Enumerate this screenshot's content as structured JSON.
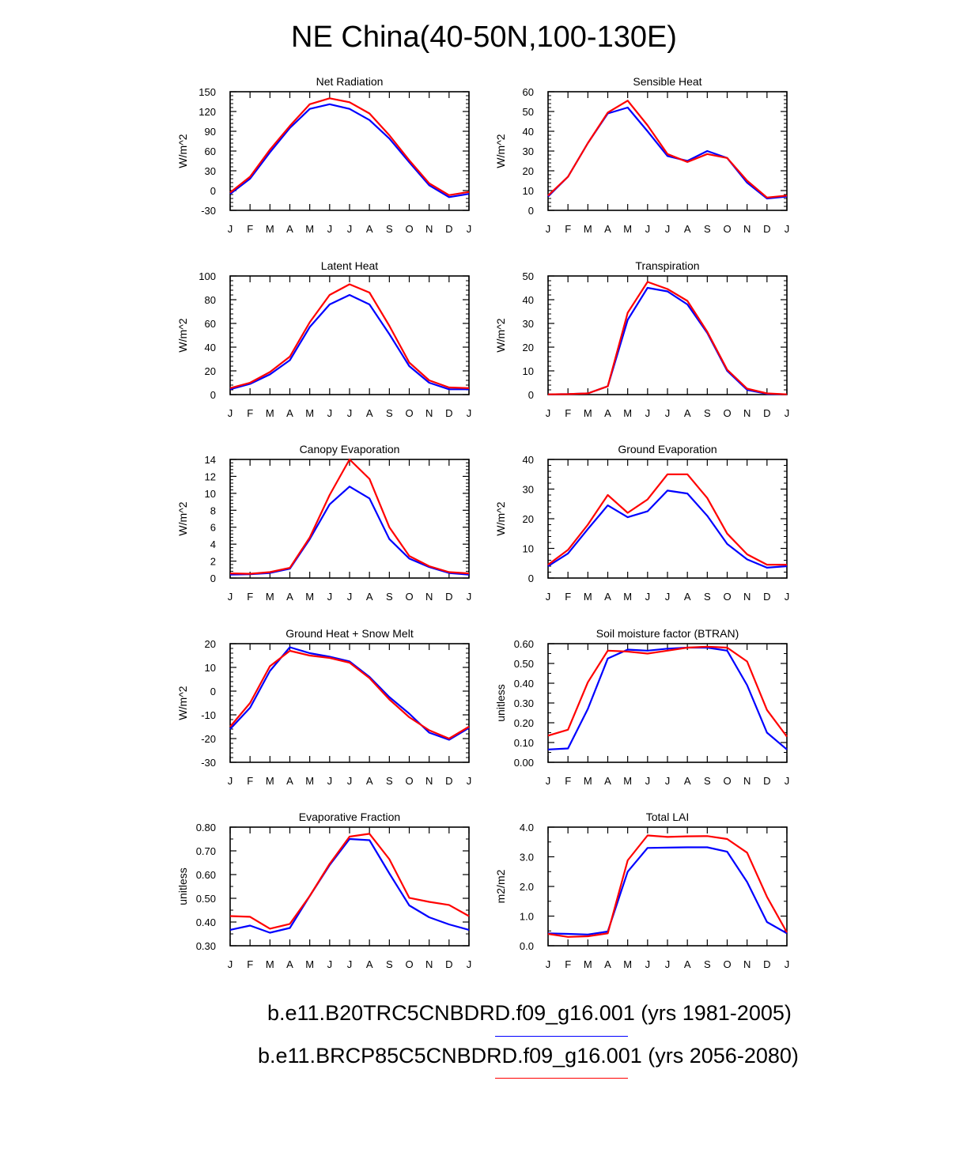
{
  "page": {
    "title": "NE China(40-50N,100-130E)"
  },
  "legend": [
    {
      "label": "b.e11.B20TRC5CNBDRD.f09_g16.001 (yrs 1981-2005)",
      "color": "#0000ff"
    },
    {
      "label": "b.e11.BRCP85C5CNBDRD.f09_g16.001 (yrs 2056-2080)",
      "color": "#ff0000"
    }
  ],
  "chart_data": [
    {
      "type": "line",
      "title": "Net Radiation",
      "ylabel": "W/m^2",
      "categories": [
        "J",
        "F",
        "M",
        "A",
        "M",
        "J",
        "J",
        "A",
        "S",
        "O",
        "N",
        "D",
        "J"
      ],
      "ylim": [
        -30,
        150
      ],
      "yticks": [
        -30,
        0,
        30,
        60,
        90,
        120,
        150
      ],
      "yticklabels": [
        "-30",
        "0",
        "30",
        "60",
        "90",
        "120",
        "150"
      ],
      "series": [
        {
          "color": "#0000ff",
          "values": [
            -5,
            18,
            58,
            95,
            124,
            131,
            124,
            107,
            79,
            43,
            8,
            -10,
            -5
          ]
        },
        {
          "color": "#ff0000",
          "values": [
            -3,
            21,
            62,
            98,
            131,
            140,
            134,
            117,
            84,
            46,
            11,
            -7,
            -2
          ]
        }
      ]
    },
    {
      "type": "line",
      "title": "Sensible Heat",
      "ylabel": "W/m^2",
      "categories": [
        "J",
        "F",
        "M",
        "A",
        "M",
        "J",
        "J",
        "A",
        "S",
        "O",
        "N",
        "D",
        "J"
      ],
      "ylim": [
        0,
        60
      ],
      "yticks": [
        0,
        10,
        20,
        30,
        40,
        50,
        60
      ],
      "yticklabels": [
        "0",
        "10",
        "20",
        "30",
        "40",
        "50",
        "60"
      ],
      "series": [
        {
          "color": "#0000ff",
          "values": [
            7,
            17,
            34,
            49,
            52,
            40,
            27.5,
            25,
            30,
            26.5,
            14,
            6,
            7
          ]
        },
        {
          "color": "#ff0000",
          "values": [
            7.5,
            17,
            34,
            49.5,
            55.5,
            43,
            28.5,
            24.5,
            28.5,
            26.5,
            15,
            6.5,
            7.5
          ]
        }
      ]
    },
    {
      "type": "line",
      "title": "Latent Heat",
      "ylabel": "W/m^2",
      "categories": [
        "J",
        "F",
        "M",
        "A",
        "M",
        "J",
        "J",
        "A",
        "S",
        "O",
        "N",
        "D",
        "J"
      ],
      "ylim": [
        0,
        100
      ],
      "yticks": [
        0,
        20,
        40,
        60,
        80,
        100
      ],
      "yticklabels": [
        "0",
        "20",
        "40",
        "60",
        "80",
        "100"
      ],
      "series": [
        {
          "color": "#0000ff",
          "values": [
            4.5,
            9,
            17,
            29,
            57,
            76,
            84,
            76,
            51,
            24,
            10,
            4.5,
            4.5
          ]
        },
        {
          "color": "#ff0000",
          "values": [
            5.5,
            10,
            19,
            32,
            61,
            84,
            93,
            86,
            58,
            27,
            12,
            6,
            5.5
          ]
        }
      ]
    },
    {
      "type": "line",
      "title": "Transpiration",
      "ylabel": "W/m^2",
      "categories": [
        "J",
        "F",
        "M",
        "A",
        "M",
        "J",
        "J",
        "A",
        "S",
        "O",
        "N",
        "D",
        "J"
      ],
      "ylim": [
        0,
        50
      ],
      "yticks": [
        0,
        10,
        20,
        30,
        40,
        50
      ],
      "yticklabels": [
        "0",
        "10",
        "20",
        "30",
        "40",
        "50"
      ],
      "series": [
        {
          "color": "#0000ff",
          "values": [
            0.1,
            0.2,
            0.5,
            3.5,
            31.5,
            45,
            43.5,
            38,
            26,
            10,
            2,
            0.3,
            0.1
          ]
        },
        {
          "color": "#ff0000",
          "values": [
            0.1,
            0.2,
            0.5,
            3.5,
            34.5,
            47.5,
            44.5,
            39.5,
            26.5,
            10.5,
            2.5,
            0.5,
            0.1
          ]
        }
      ]
    },
    {
      "type": "line",
      "title": "Canopy Evaporation",
      "ylabel": "W/m^2",
      "categories": [
        "J",
        "F",
        "M",
        "A",
        "M",
        "J",
        "J",
        "A",
        "S",
        "O",
        "N",
        "D",
        "J"
      ],
      "ylim": [
        0,
        14
      ],
      "yticks": [
        0,
        2,
        4,
        6,
        8,
        10,
        12,
        14
      ],
      "yticklabels": [
        "0",
        "2",
        "4",
        "6",
        "8",
        "10",
        "12",
        "14"
      ],
      "series": [
        {
          "color": "#0000ff",
          "values": [
            0.4,
            0.45,
            0.6,
            1.1,
            4.6,
            8.7,
            10.8,
            9.4,
            4.6,
            2.3,
            1.3,
            0.6,
            0.4
          ]
        },
        {
          "color": "#ff0000",
          "values": [
            0.55,
            0.5,
            0.7,
            1.2,
            4.8,
            9.8,
            14.0,
            11.7,
            6.0,
            2.6,
            1.4,
            0.7,
            0.55
          ]
        }
      ]
    },
    {
      "type": "line",
      "title": "Ground Evaporation",
      "ylabel": "W/m^2",
      "categories": [
        "J",
        "F",
        "M",
        "A",
        "M",
        "J",
        "J",
        "A",
        "S",
        "O",
        "N",
        "D",
        "J"
      ],
      "ylim": [
        0,
        40
      ],
      "yticks": [
        0,
        10,
        20,
        30,
        40
      ],
      "yticklabels": [
        "0",
        "10",
        "20",
        "30",
        "40"
      ],
      "series": [
        {
          "color": "#0000ff",
          "values": [
            4,
            8.3,
            16.5,
            24.5,
            20.5,
            22.5,
            29.5,
            28.5,
            21,
            11.5,
            6.3,
            3.5,
            4
          ]
        },
        {
          "color": "#ff0000",
          "values": [
            4.5,
            9.5,
            18,
            28,
            22,
            26.5,
            35,
            35,
            27,
            15,
            8,
            4.5,
            4.5
          ]
        }
      ]
    },
    {
      "type": "line",
      "title": "Ground Heat + Snow Melt",
      "ylabel": "W/m^2",
      "categories": [
        "J",
        "F",
        "M",
        "A",
        "M",
        "J",
        "J",
        "A",
        "S",
        "O",
        "N",
        "D",
        "J"
      ],
      "ylim": [
        -30,
        20
      ],
      "yticks": [
        -30,
        -20,
        -10,
        0,
        10,
        20
      ],
      "yticklabels": [
        "-30",
        "-20",
        "-10",
        "0",
        "10",
        "20"
      ],
      "series": [
        {
          "color": "#0000ff",
          "values": [
            -16,
            -7,
            8.5,
            18.5,
            16,
            14.5,
            12.5,
            6,
            -2.5,
            -9.5,
            -17.5,
            -20.5,
            -15.5
          ]
        },
        {
          "color": "#ff0000",
          "values": [
            -15,
            -5,
            10.5,
            17,
            15,
            14,
            12,
            5.5,
            -3.5,
            -11,
            -16.5,
            -20,
            -15
          ]
        }
      ]
    },
    {
      "type": "line",
      "title": "Soil moisture factor (BTRAN)",
      "ylabel": "unitless",
      "categories": [
        "J",
        "F",
        "M",
        "A",
        "M",
        "J",
        "J",
        "A",
        "S",
        "O",
        "N",
        "D",
        "J"
      ],
      "ylim": [
        0,
        0.6
      ],
      "yticks": [
        0,
        0.1,
        0.2,
        0.3,
        0.4,
        0.5,
        0.6
      ],
      "yticklabels": [
        "0.00",
        "0.10",
        "0.20",
        "0.30",
        "0.40",
        "0.50",
        "0.60"
      ],
      "yminor": [
        0.05,
        0.15,
        0.25,
        0.35,
        0.45,
        0.55
      ],
      "series": [
        {
          "color": "#0000ff",
          "values": [
            0.065,
            0.07,
            0.27,
            0.525,
            0.57,
            0.565,
            0.575,
            0.58,
            0.58,
            0.565,
            0.39,
            0.15,
            0.065
          ]
        },
        {
          "color": "#ff0000",
          "values": [
            0.135,
            0.165,
            0.405,
            0.565,
            0.56,
            0.55,
            0.565,
            0.58,
            0.585,
            0.58,
            0.51,
            0.265,
            0.13
          ]
        }
      ]
    },
    {
      "type": "line",
      "title": "Evaporative Fraction",
      "ylabel": "unitless",
      "categories": [
        "J",
        "F",
        "M",
        "A",
        "M",
        "J",
        "J",
        "A",
        "S",
        "O",
        "N",
        "D",
        "J"
      ],
      "ylim": [
        0.3,
        0.8
      ],
      "yticks": [
        0.3,
        0.4,
        0.5,
        0.6,
        0.7,
        0.8
      ],
      "yticklabels": [
        "0.30",
        "0.40",
        "0.50",
        "0.60",
        "0.70",
        "0.80"
      ],
      "yminor": [
        0.35,
        0.45,
        0.55,
        0.65,
        0.75
      ],
      "series": [
        {
          "color": "#0000ff",
          "values": [
            0.367,
            0.385,
            0.355,
            0.375,
            0.51,
            0.64,
            0.75,
            0.745,
            0.605,
            0.47,
            0.42,
            0.39,
            0.367
          ]
        },
        {
          "color": "#ff0000",
          "values": [
            0.425,
            0.422,
            0.372,
            0.392,
            0.51,
            0.645,
            0.76,
            0.772,
            0.665,
            0.502,
            0.485,
            0.472,
            0.425
          ]
        }
      ]
    },
    {
      "type": "line",
      "title": "Total LAI",
      "ylabel": "m2/m2",
      "categories": [
        "J",
        "F",
        "M",
        "A",
        "M",
        "J",
        "J",
        "A",
        "S",
        "O",
        "N",
        "D",
        "J"
      ],
      "ylim": [
        0,
        4
      ],
      "yticks": [
        0,
        1,
        2,
        3,
        4
      ],
      "yticklabels": [
        "0.0",
        "1.0",
        "2.0",
        "3.0",
        "4.0"
      ],
      "yminor": [
        0.5,
        1.5,
        2.5,
        3.5
      ],
      "series": [
        {
          "color": "#0000ff",
          "values": [
            0.42,
            0.4,
            0.38,
            0.48,
            2.5,
            3.3,
            3.31,
            3.32,
            3.32,
            3.17,
            2.15,
            0.8,
            0.42
          ]
        },
        {
          "color": "#ff0000",
          "values": [
            0.4,
            0.3,
            0.32,
            0.42,
            2.88,
            3.72,
            3.67,
            3.69,
            3.7,
            3.6,
            3.14,
            1.65,
            0.45
          ]
        }
      ]
    }
  ]
}
